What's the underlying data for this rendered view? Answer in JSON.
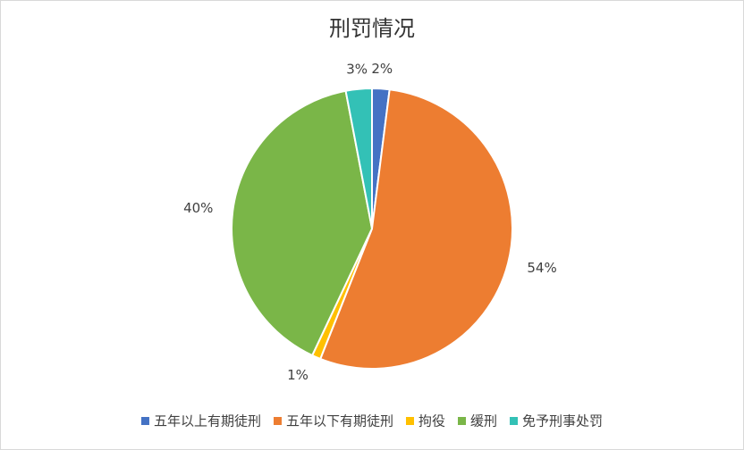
{
  "chart_data": {
    "type": "pie",
    "title": "刑罚情况",
    "categories": [
      "五年以上有期徒刑",
      "五年以下有期徒刑",
      "拘役",
      "缓刑",
      "免予刑事处罚"
    ],
    "values": [
      2,
      54,
      1,
      40,
      3
    ],
    "value_labels": [
      "2%",
      "54%",
      "1%",
      "40%",
      "3%"
    ],
    "colors": [
      "#4472c4",
      "#ed7d31",
      "#ffc000",
      "#7ab648",
      "#33c1b6"
    ],
    "legend": "bottom"
  }
}
